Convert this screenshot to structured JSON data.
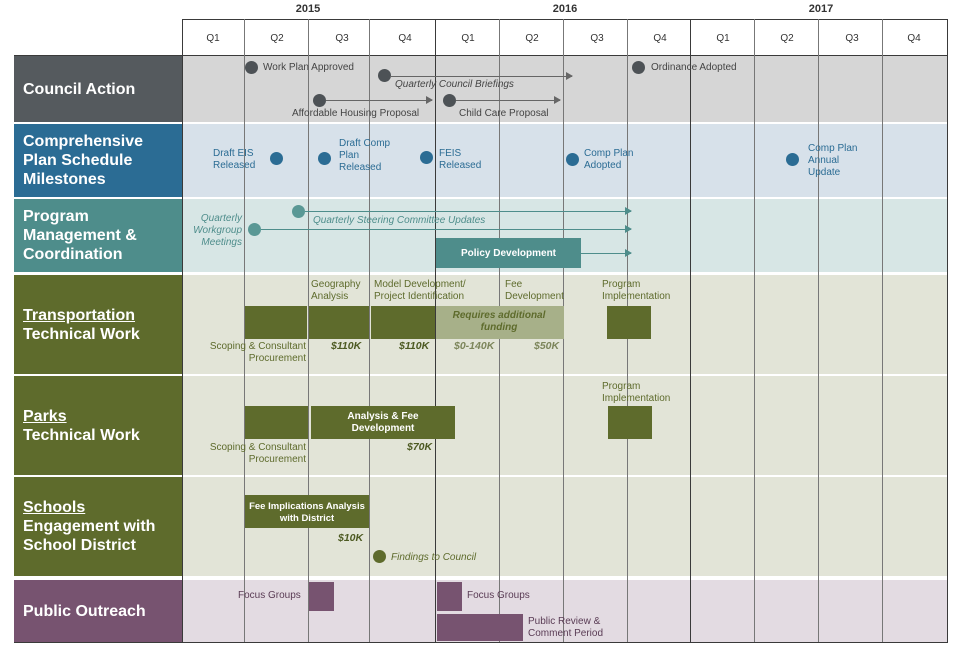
{
  "years": [
    "2015",
    "2016",
    "2017"
  ],
  "quarters": [
    "Q1",
    "Q2",
    "Q3",
    "Q4",
    "Q1",
    "Q2",
    "Q3",
    "Q4",
    "Q1",
    "Q2",
    "Q3",
    "Q4"
  ],
  "colors": {
    "council": "#555a5e",
    "comp": "#2b6c94",
    "program": "#4e8d8b",
    "transport": "#5e6b2c",
    "parks": "#5e6b2c",
    "schools": "#5e6b2c",
    "outreach": "#775370",
    "council_bg": "#d6d6d6",
    "comp_bg": "#d7e1ea",
    "program_bg": "#d7e6e5",
    "tech_bg": "#e2e4d7",
    "outreach_bg": "#e3dbe2",
    "dot_dark": "#4d5256",
    "dot_blue": "#2b6c94",
    "dot_teal": "#5a9895",
    "bar_green": "#5e6b2c",
    "bar_lightgreen": "#a7b089",
    "bar_teal": "#4e8d8b",
    "bar_purple": "#775370"
  },
  "rows": {
    "council": {
      "label": "Council Action"
    },
    "comp": {
      "label": "Comprehensive Plan Schedule Milestones"
    },
    "program": {
      "label": "Program Management & Coordination"
    },
    "transport": {
      "label_ul": "Transportation",
      "label_rest": "Technical Work"
    },
    "parks": {
      "label_ul": "Parks",
      "label_rest": "Technical Work"
    },
    "schools": {
      "label_ul": "Schools",
      "label_rest": "Engagement with School District"
    },
    "outreach": {
      "label": "Public Outreach"
    }
  },
  "council": {
    "work_plan": "Work Plan Approved",
    "briefings": "Quarterly Council Briefings",
    "ordinance": "Ordinance Adopted",
    "affordable": "Affordable Housing Proposal",
    "childcare": "Child Care Proposal"
  },
  "comp": {
    "draft_eis": "Draft EIS Released",
    "draft_comp": "Draft Comp Plan Released",
    "feis": "FEIS Released",
    "comp_adopted": "Comp Plan Adopted",
    "annual_update": "Comp Plan Annual Update"
  },
  "program": {
    "steering": "Quarterly Steering Committee Updates",
    "workgroup": "Quarterly Workgroup Meetings",
    "policy": "Policy Development"
  },
  "transport": {
    "geography": "Geography Analysis",
    "model": "Model Development/ Project Identification",
    "fee": "Fee Development",
    "implementation": "Program Implementation",
    "requires": "Requires additional funding",
    "scoping": "Scoping & Consultant Procurement",
    "cost1": "$110K",
    "cost2": "$110K",
    "cost3": "$0-140K",
    "cost4": "$50K"
  },
  "parks": {
    "implementation": "Program Implementation",
    "analysis": "Analysis & Fee Development",
    "scoping": "Scoping & Consultant Procurement",
    "cost": "$70K"
  },
  "schools": {
    "fee_impl": "Fee Implications Analysis with District",
    "cost": "$10K",
    "findings": "Findings to Council"
  },
  "outreach": {
    "focus1": "Focus Groups",
    "focus2": "Focus Groups",
    "public_review": "Public Review & Comment Period"
  }
}
